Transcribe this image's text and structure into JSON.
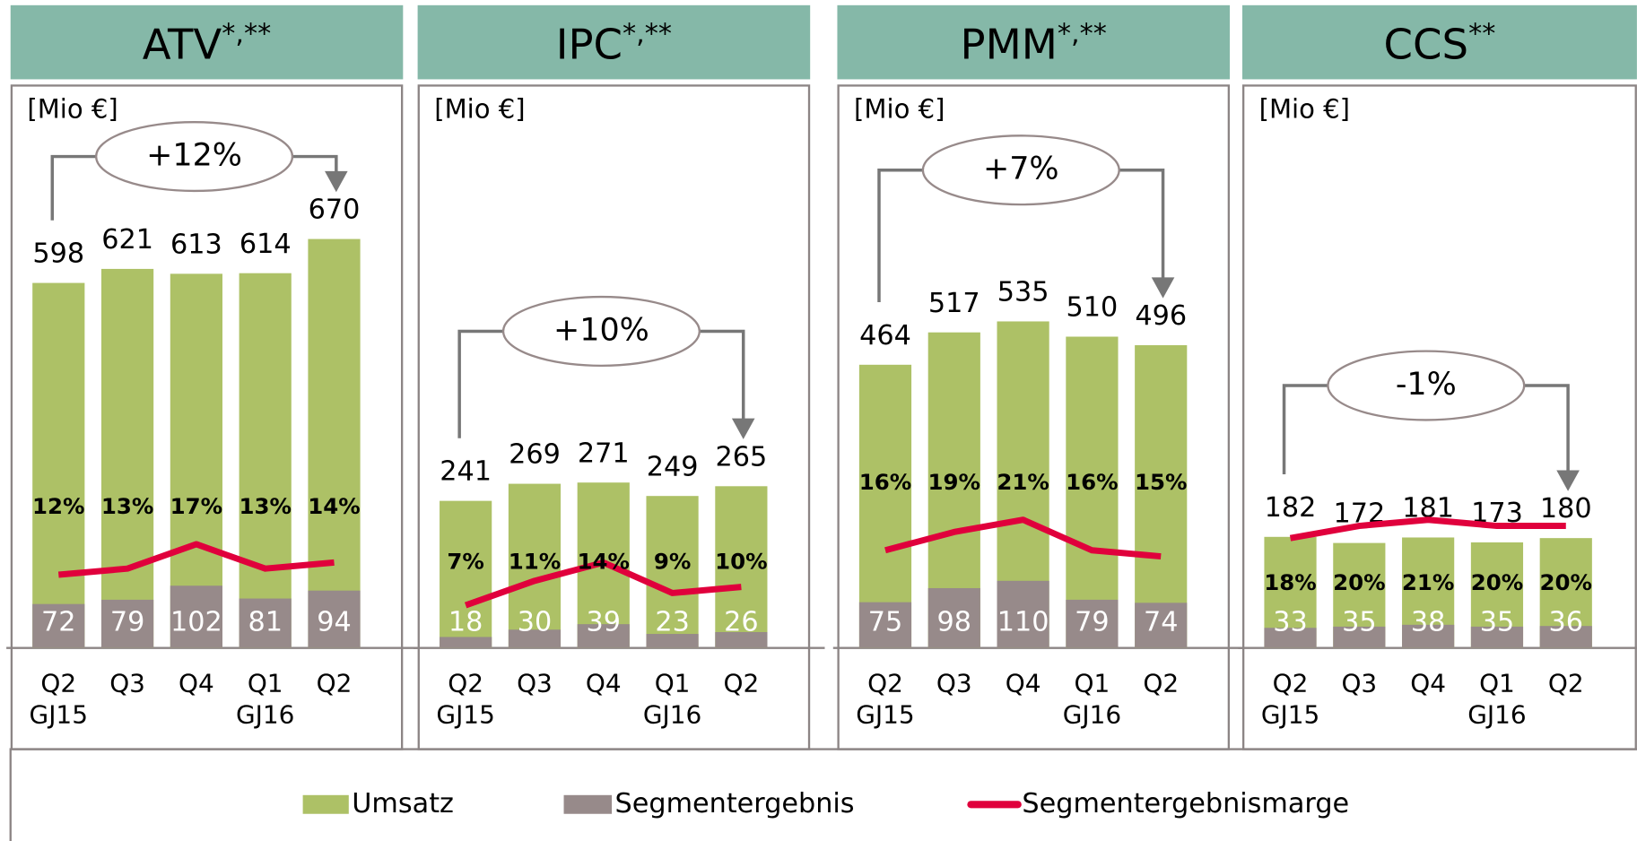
{
  "chart_data": {
    "type": "bar",
    "series": [
      {
        "name": "Umsatz",
        "color": "#adc166"
      },
      {
        "name": "Segmentergebnis",
        "color": "#978a8a"
      },
      {
        "name": "Segmentergebnismarge",
        "color": "#e0003c",
        "type": "line",
        "axis": "y2"
      }
    ],
    "ylim": [
      0,
      900
    ],
    "y2lim": [
      0,
      90
    ],
    "panels": [
      {
        "title": "ATV",
        "title_note": "*,**",
        "unit": "[Mio €]",
        "change": "+12%",
        "categories": [
          "Q2",
          "Q3",
          "Q4",
          "Q1",
          "Q2"
        ],
        "category_years": [
          "GJ15",
          null,
          null,
          "GJ16",
          null
        ],
        "values": [
          [
            598,
            621,
            613,
            614,
            670
          ],
          [
            72,
            79,
            102,
            81,
            94
          ],
          [
            12,
            13,
            17,
            13,
            14
          ]
        ],
        "margin_labels": [
          "12%",
          "13%",
          "17%",
          "13%",
          "14%"
        ]
      },
      {
        "title": "IPC",
        "title_note": "*,**",
        "unit": "[Mio €]",
        "change": "+10%",
        "categories": [
          "Q2",
          "Q3",
          "Q4",
          "Q1",
          "Q2"
        ],
        "category_years": [
          "GJ15",
          null,
          null,
          "GJ16",
          null
        ],
        "values": [
          [
            241,
            269,
            271,
            249,
            265
          ],
          [
            18,
            30,
            39,
            23,
            26
          ],
          [
            7,
            11,
            14,
            9,
            10
          ]
        ],
        "margin_labels": [
          "7%",
          "11%",
          "14%",
          "9%",
          "10%"
        ]
      },
      {
        "title": "PMM",
        "title_note": "*,**",
        "unit": "[Mio €]",
        "change": "+7%",
        "categories": [
          "Q2",
          "Q3",
          "Q4",
          "Q1",
          "Q2"
        ],
        "category_years": [
          "GJ15",
          null,
          null,
          "GJ16",
          null
        ],
        "values": [
          [
            464,
            517,
            535,
            510,
            496
          ],
          [
            75,
            98,
            110,
            79,
            74
          ],
          [
            16,
            19,
            21,
            16,
            15
          ]
        ],
        "margin_labels": [
          "16%",
          "19%",
          "21%",
          "16%",
          "15%"
        ]
      },
      {
        "title": "CCS",
        "title_note": "**",
        "unit": "[Mio €]",
        "change": "-1%",
        "categories": [
          "Q2",
          "Q3",
          "Q4",
          "Q1",
          "Q2"
        ],
        "category_years": [
          "GJ15",
          null,
          null,
          "GJ16",
          null
        ],
        "values": [
          [
            182,
            172,
            181,
            173,
            180
          ],
          [
            33,
            35,
            38,
            35,
            36
          ],
          [
            18,
            20,
            21,
            20,
            20
          ]
        ],
        "margin_labels": [
          "18%",
          "20%",
          "21%",
          "20%",
          "20%"
        ]
      }
    ]
  }
}
